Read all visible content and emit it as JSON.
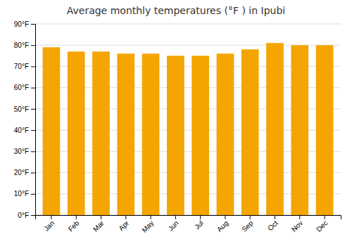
{
  "chart_data": {
    "type": "bar",
    "title": "Average monthly temperatures (°F ) in Ipubi",
    "categories": [
      "Jan",
      "Feb",
      "Mar",
      "Apr",
      "May",
      "Jun",
      "Jul",
      "Aug",
      "Sep",
      "Oct",
      "Nov",
      "Dec"
    ],
    "values": [
      79,
      77,
      77,
      76,
      76,
      75,
      75,
      76,
      78,
      81,
      80,
      80
    ],
    "color": "#F5A500",
    "ylim": [
      0,
      90
    ],
    "yticks": [
      {
        "value": 0,
        "label": "0°F"
      },
      {
        "value": 10,
        "label": "10°F"
      },
      {
        "value": 20,
        "label": "20°F"
      },
      {
        "value": 30,
        "label": "30°F"
      },
      {
        "value": 40,
        "label": "40°F"
      },
      {
        "value": 50,
        "label": "50°F"
      },
      {
        "value": 60,
        "label": "60°F"
      },
      {
        "value": 70,
        "label": "70°F"
      },
      {
        "value": 80,
        "label": "80°F"
      },
      {
        "value": 90,
        "label": "90°F"
      }
    ],
    "grid": true
  }
}
